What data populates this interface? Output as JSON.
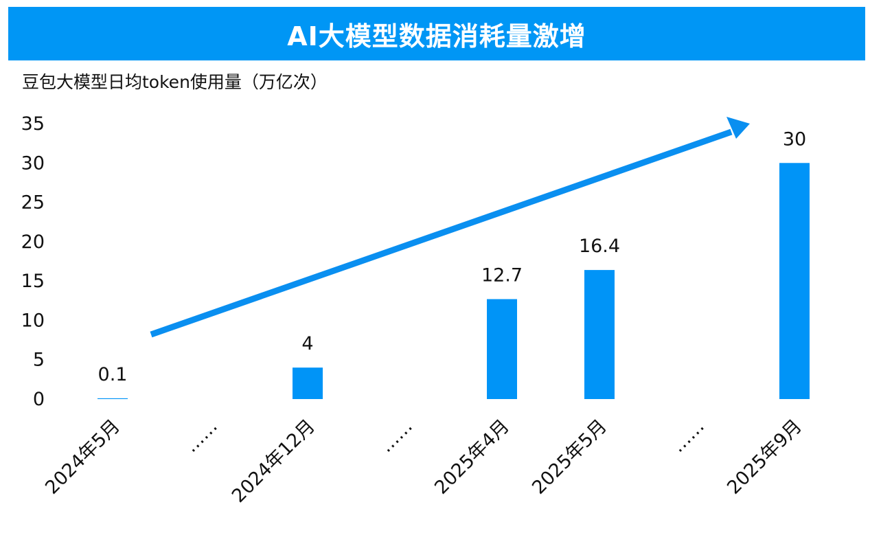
{
  "title": "AI大模型数据消耗量激增",
  "colors": {
    "banner": "#0096f5",
    "bar": "#0094f7",
    "arrow": "#0a8ff0"
  },
  "chart_data": {
    "type": "bar",
    "ylabel": "豆包大模型日均token使用量（万亿次）",
    "xlabel": "",
    "categories": [
      "2024年5月",
      "……",
      "2024年12月",
      "……",
      "2025年4月",
      "2025年5月",
      "……",
      "2025年9月"
    ],
    "values": [
      0.1,
      null,
      4,
      null,
      12.7,
      16.4,
      null,
      30
    ],
    "data_labels": [
      "0.1",
      "",
      "4",
      "",
      "12.7",
      "16.4",
      "",
      "30"
    ],
    "ylim": [
      0,
      35
    ],
    "yticks": [
      "0",
      "5",
      "10",
      "15",
      "20",
      "25",
      "30",
      "35"
    ],
    "grid": false,
    "annotations": [
      "upward trend arrow"
    ]
  }
}
